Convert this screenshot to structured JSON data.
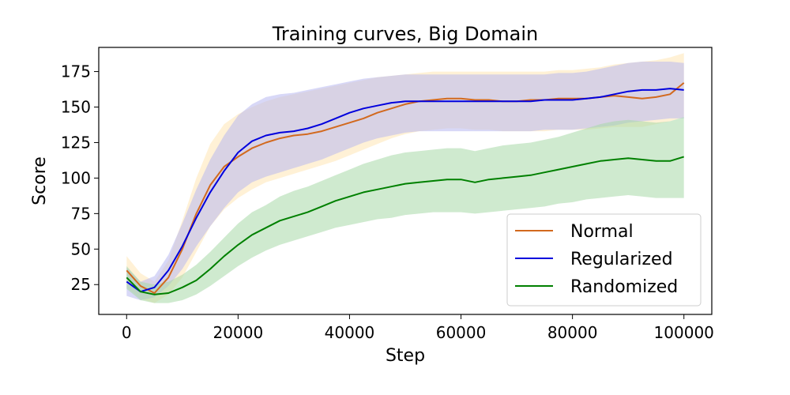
{
  "chart_data": {
    "type": "line",
    "title": "Training curves, Big Domain",
    "xlabel": "Step",
    "ylabel": "Score",
    "xlim": [
      -5000,
      105000
    ],
    "ylim": [
      4,
      192
    ],
    "xticks": [
      0,
      20000,
      40000,
      60000,
      80000,
      100000
    ],
    "yticks": [
      25,
      50,
      75,
      100,
      125,
      150,
      175
    ],
    "grid": false,
    "legend": "lower-right",
    "x": [
      0,
      2500,
      5000,
      7500,
      10000,
      12500,
      15000,
      17500,
      20000,
      22500,
      25000,
      27500,
      30000,
      32500,
      35000,
      37500,
      40000,
      42500,
      45000,
      47500,
      50000,
      52500,
      55000,
      57500,
      60000,
      62500,
      65000,
      67500,
      70000,
      72500,
      75000,
      77500,
      80000,
      82500,
      85000,
      87500,
      90000,
      92500,
      95000,
      97500,
      100000
    ],
    "series": [
      {
        "name": "Normal",
        "color": "#d2691e",
        "band_color": "#ffe5b4",
        "values": [
          35,
          24,
          19,
          30,
          50,
          75,
          95,
          108,
          115,
          121,
          125,
          128,
          130,
          131,
          133,
          136,
          139,
          142,
          146,
          149,
          152,
          154,
          155,
          156,
          156,
          155,
          155,
          154,
          154,
          155,
          155,
          156,
          156,
          156,
          157,
          158,
          157,
          156,
          157,
          159,
          167
        ],
        "lower": [
          23,
          15,
          12,
          18,
          30,
          48,
          66,
          78,
          86,
          92,
          97,
          100,
          103,
          106,
          109,
          112,
          116,
          120,
          124,
          128,
          131,
          133,
          134,
          135,
          135,
          134,
          134,
          133,
          133,
          133,
          133,
          134,
          134,
          134,
          135,
          136,
          136,
          136,
          138,
          140,
          143
        ],
        "upper": [
          45,
          33,
          27,
          42,
          70,
          100,
          124,
          138,
          145,
          150,
          154,
          157,
          159,
          161,
          163,
          165,
          167,
          169,
          171,
          172,
          173,
          174,
          175,
          175,
          175,
          175,
          175,
          175,
          175,
          175,
          175,
          176,
          176,
          177,
          178,
          180,
          181,
          182,
          183,
          185,
          188
        ]
      },
      {
        "name": "Regularized",
        "color": "#0000dd",
        "band_color": "#b8b8f0",
        "values": [
          27,
          20,
          23,
          35,
          52,
          72,
          90,
          105,
          118,
          126,
          130,
          132,
          133,
          135,
          138,
          142,
          146,
          149,
          151,
          153,
          154,
          154,
          154,
          154,
          154,
          154,
          154,
          154,
          154,
          154,
          155,
          155,
          155,
          156,
          157,
          159,
          161,
          162,
          162,
          163,
          162
        ],
        "lower": [
          17,
          14,
          16,
          24,
          36,
          52,
          66,
          79,
          90,
          97,
          101,
          104,
          107,
          110,
          113,
          117,
          121,
          125,
          128,
          130,
          132,
          133,
          133,
          133,
          133,
          133,
          133,
          133,
          133,
          133,
          134,
          134,
          134,
          135,
          136,
          137,
          139,
          140,
          141,
          142,
          142
        ],
        "upper": [
          37,
          27,
          31,
          46,
          68,
          92,
          113,
          130,
          144,
          152,
          157,
          159,
          160,
          162,
          164,
          166,
          168,
          170,
          171,
          172,
          173,
          173,
          173,
          173,
          173,
          173,
          173,
          173,
          173,
          173,
          173,
          174,
          174,
          175,
          177,
          179,
          181,
          182,
          182,
          182,
          181
        ]
      },
      {
        "name": "Randomized",
        "color": "#008000",
        "band_color": "#a8d8a8",
        "values": [
          30,
          20,
          18,
          19,
          23,
          28,
          36,
          45,
          53,
          60,
          65,
          70,
          73,
          76,
          80,
          84,
          87,
          90,
          92,
          94,
          96,
          97,
          98,
          99,
          99,
          97,
          99,
          100,
          101,
          102,
          104,
          106,
          108,
          110,
          112,
          113,
          114,
          113,
          112,
          112,
          115
        ],
        "lower": [
          22,
          14,
          12,
          12,
          14,
          18,
          24,
          31,
          38,
          44,
          49,
          53,
          56,
          59,
          62,
          65,
          67,
          69,
          71,
          72,
          74,
          75,
          76,
          76,
          76,
          75,
          76,
          77,
          78,
          79,
          80,
          82,
          83,
          85,
          86,
          87,
          88,
          87,
          86,
          86,
          86
        ],
        "upper": [
          38,
          27,
          25,
          27,
          32,
          39,
          48,
          58,
          68,
          76,
          81,
          87,
          91,
          94,
          98,
          102,
          106,
          110,
          113,
          116,
          118,
          119,
          120,
          121,
          121,
          119,
          121,
          123,
          124,
          125,
          127,
          129,
          132,
          135,
          138,
          140,
          141,
          140,
          139,
          140,
          143
        ]
      }
    ]
  }
}
